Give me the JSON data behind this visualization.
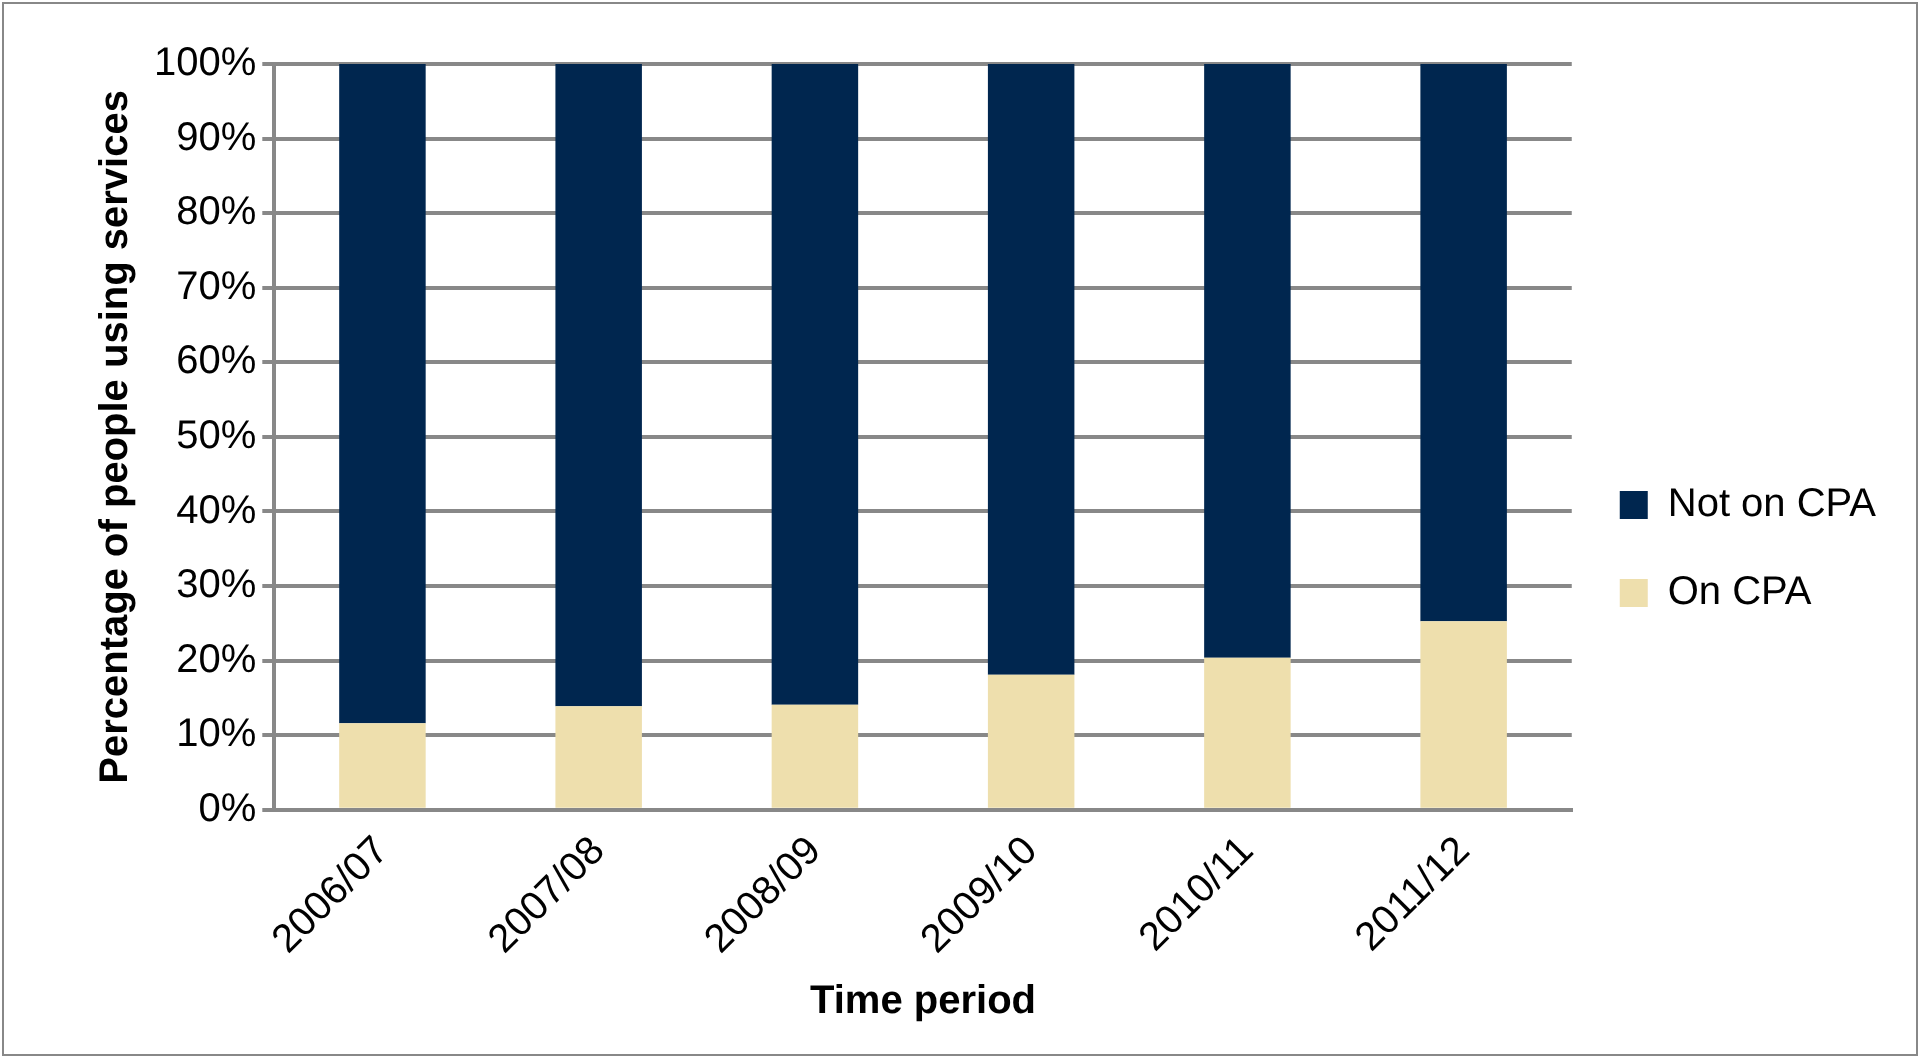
{
  "chart_data": {
    "type": "bar",
    "stacked": true,
    "xlabel": "Time period",
    "ylabel": "Percentage of people using services",
    "categories": [
      "2006/07",
      "2007/08",
      "2008/09",
      "2009/10",
      "2010/11",
      "2011/12"
    ],
    "series": [
      {
        "name": "On CPA",
        "color": "#eedfad",
        "values": [
          11.6,
          13.9,
          14.1,
          18.1,
          20.4,
          25.3
        ]
      },
      {
        "name": "Not on CPA",
        "color": "#00264f",
        "values": [
          88.4,
          86.1,
          85.9,
          81.9,
          79.6,
          74.7
        ]
      }
    ],
    "ylim": [
      0,
      100
    ],
    "yticks": [
      {
        "value": 0,
        "label": "0%"
      },
      {
        "value": 10,
        "label": "10%"
      },
      {
        "value": 20,
        "label": "20%"
      },
      {
        "value": 30,
        "label": "30%"
      },
      {
        "value": 40,
        "label": "40%"
      },
      {
        "value": 50,
        "label": "50%"
      },
      {
        "value": 60,
        "label": "60%"
      },
      {
        "value": 70,
        "label": "70%"
      },
      {
        "value": 80,
        "label": "80%"
      },
      {
        "value": 90,
        "label": "90%"
      },
      {
        "value": 100,
        "label": "100%"
      }
    ],
    "grid": "y",
    "legend": "right"
  }
}
